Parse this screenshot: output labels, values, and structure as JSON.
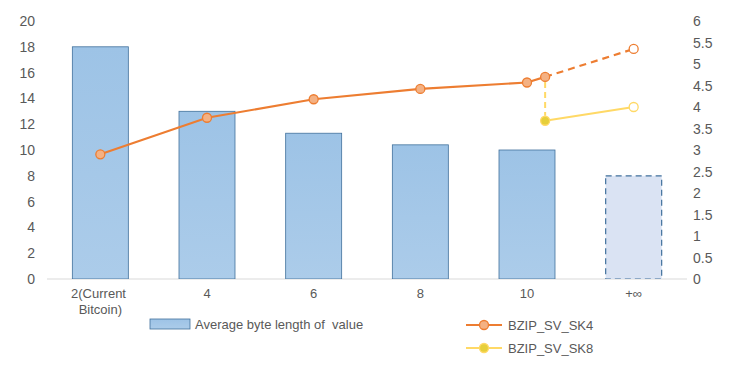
{
  "chart_data": {
    "type": "bar",
    "categories": [
      "2(Current Bitcoin)",
      "4",
      "6",
      "8",
      "10",
      "+∞"
    ],
    "ylim": [
      0,
      20
    ],
    "yticks": [
      0,
      2,
      4,
      6,
      8,
      10,
      12,
      14,
      16,
      18,
      20
    ],
    "y2lim": [
      0,
      6
    ],
    "y2ticks": [
      0,
      0.5,
      1,
      1.5,
      2,
      2.5,
      3,
      3.5,
      4,
      4.5,
      5,
      5.5,
      6
    ],
    "grid": false,
    "legend": "bottom",
    "series": [
      {
        "name": "Average byte length of  value",
        "type": "bar",
        "color": "#9dc3e6",
        "values": [
          18,
          13,
          11.3,
          10.4,
          10,
          8
        ]
      },
      {
        "name": "BZIP_SV_SK4",
        "type": "line",
        "axis": "y2",
        "color": "#ed7d31",
        "marker": "circle",
        "line_style": "dashed-last",
        "x": [
          0,
          1,
          2,
          3,
          4,
          4.17,
          5
        ],
        "values": [
          2.9,
          3.75,
          4.18,
          4.42,
          4.57,
          4.7,
          5.35
        ]
      },
      {
        "name": "BZIP_SV_SK8",
        "type": "line",
        "axis": "y2",
        "color": "#ffd966",
        "marker": "circle",
        "line_style": "solid",
        "x": [
          4.17,
          5
        ],
        "values": [
          3.68,
          4.0
        ]
      }
    ]
  }
}
